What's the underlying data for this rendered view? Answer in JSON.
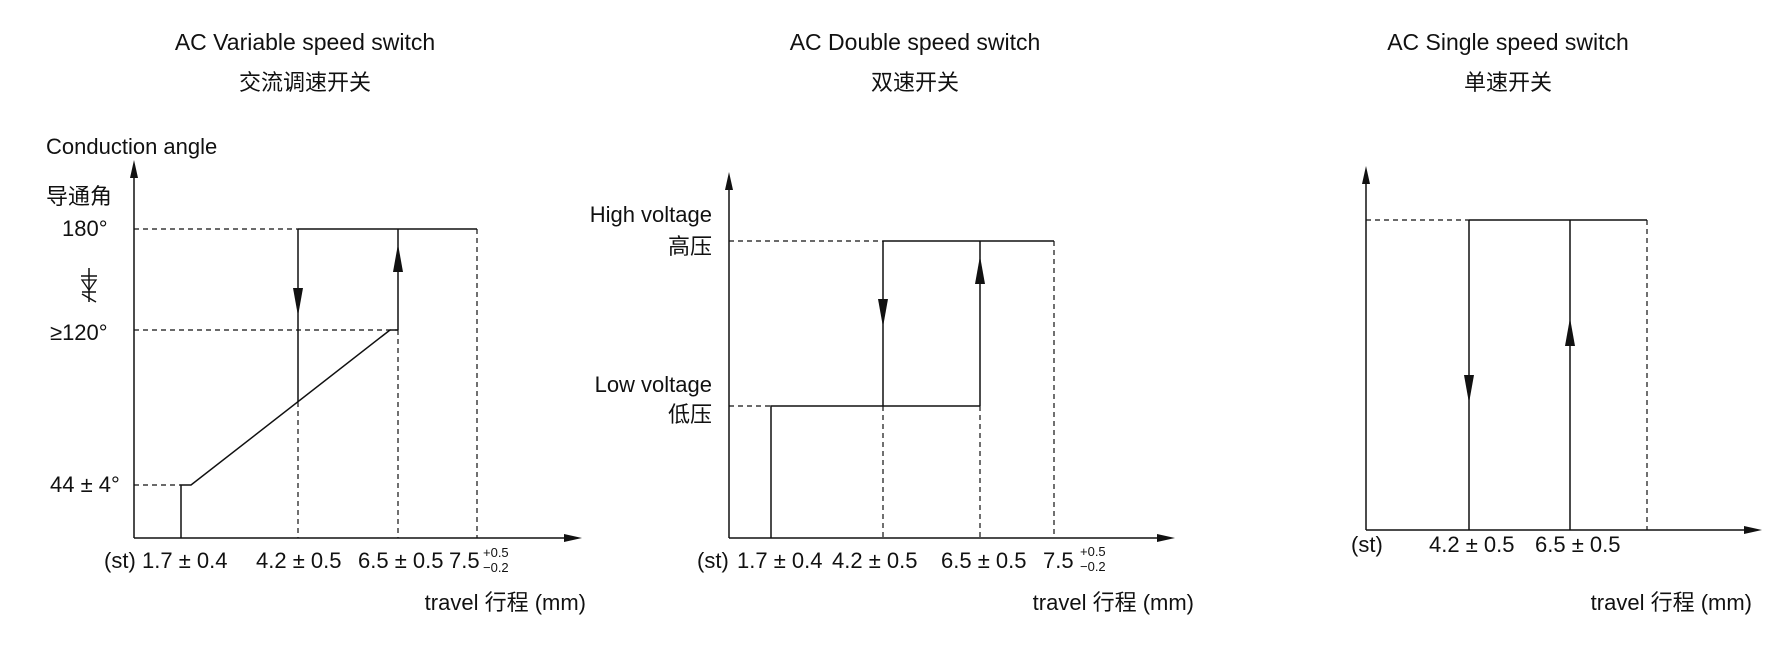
{
  "panels": [
    {
      "title": "AC  Variable speed switch",
      "subtitle": "交流调速开关",
      "y_title": "Conduction angle",
      "y_subtitle": "导通角",
      "y_labels": [
        "180°",
        "≥120°",
        "44 ± 4°"
      ],
      "x_labels": [
        "(st)",
        "1.7 ± 0.4",
        "4.2 ± 0.5",
        "6.5 ± 0.5",
        "7.5"
      ],
      "x_tol": [
        "+0.5",
        "−0.2"
      ],
      "travel_label": "travel  行程 (mm)"
    },
    {
      "title": "AC  Double speed switch",
      "subtitle": "双速开关",
      "y_labels": [
        "High voltage",
        "高压",
        "Low voltage",
        "低压"
      ],
      "x_labels": [
        "(st)",
        "1.7 ± 0.4",
        "4.2 ± 0.5",
        "6.5 ± 0.5",
        "7.5"
      ],
      "x_tol": [
        "+0.5",
        "−0.2"
      ],
      "travel_label": "travel  行程 (mm)"
    },
    {
      "title": "AC  Single speed switch",
      "subtitle": "单速开关",
      "x_labels": [
        "(st)",
        "4.2 ± 0.5",
        "6.5 ± 0.5"
      ],
      "travel_label": "travel  行程 (mm)"
    }
  ]
}
